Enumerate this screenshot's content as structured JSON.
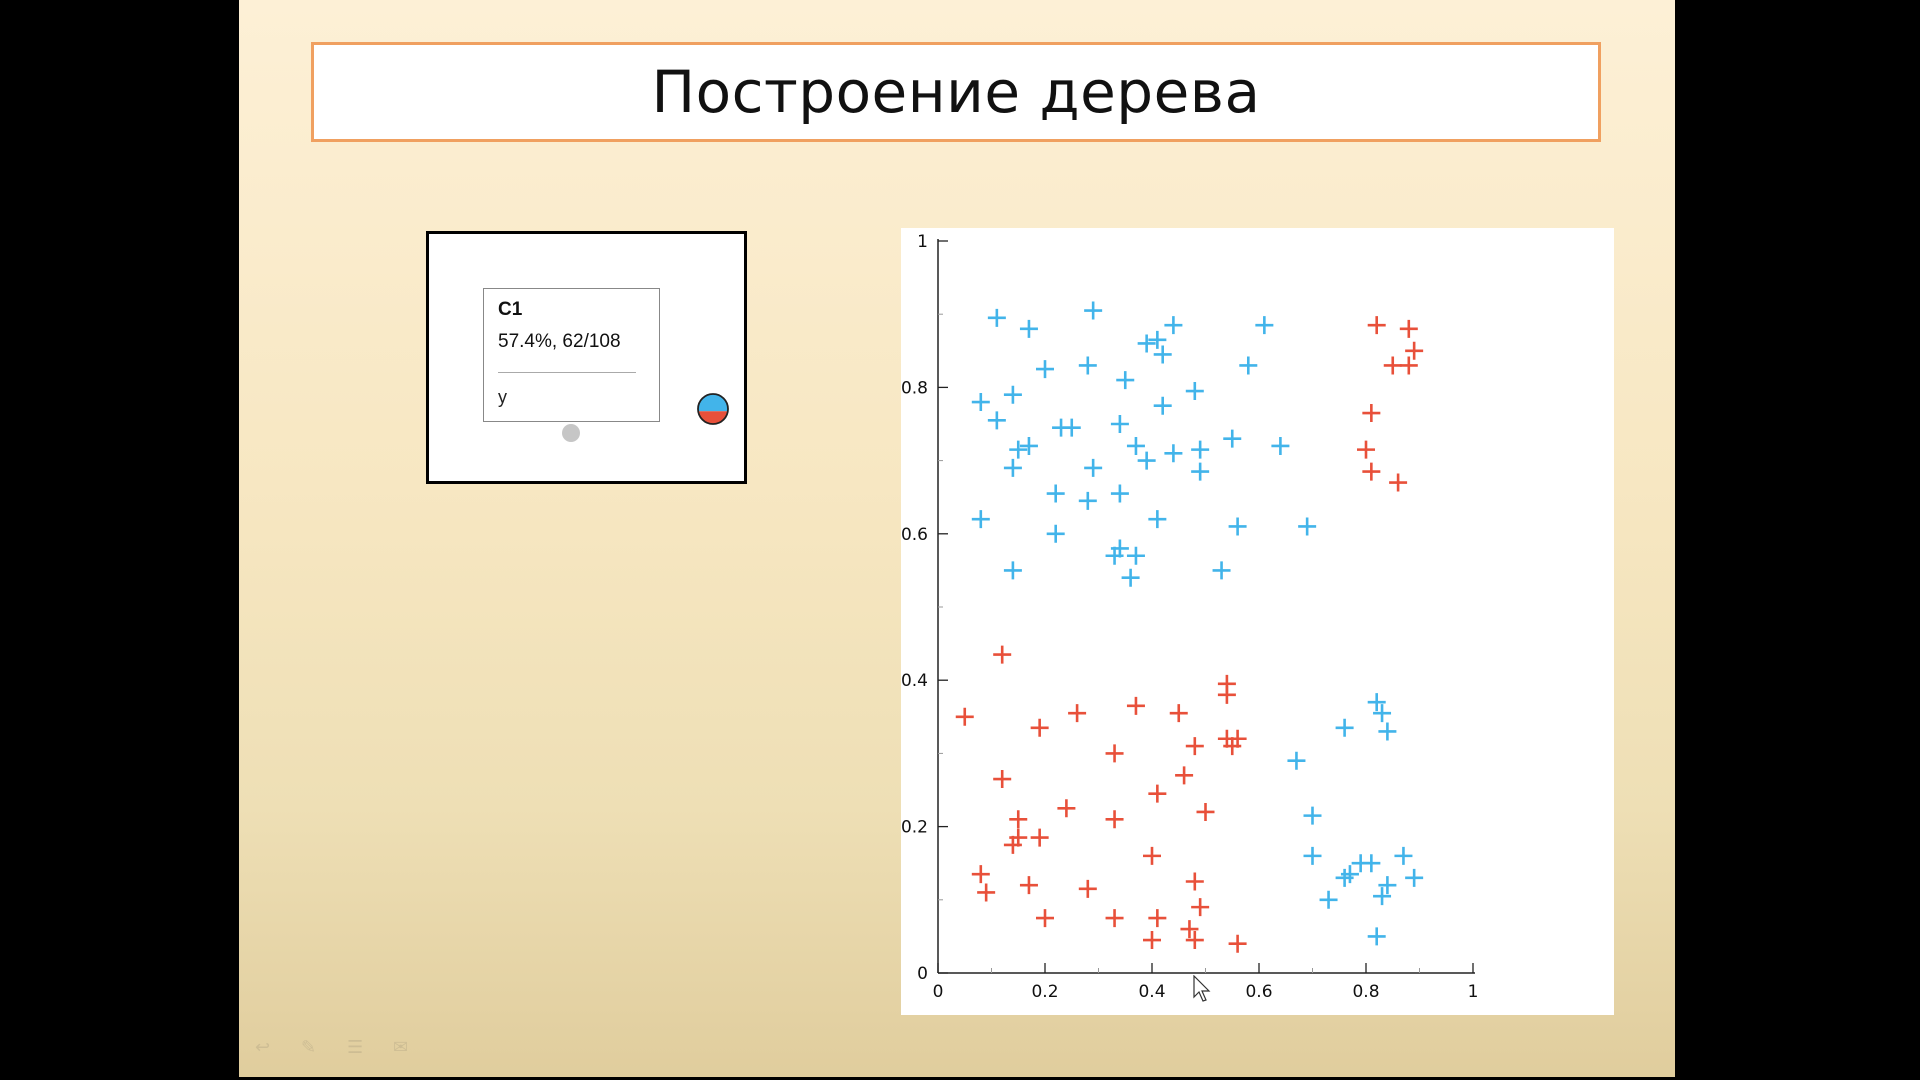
{
  "slide": {
    "title": "Построение дерева"
  },
  "tree_node": {
    "title": "C1",
    "stats": "57.4%, 62/108",
    "split_variable": "y",
    "pie_fraction_blue": 0.574,
    "colors": {
      "blue": "#42b4ea",
      "red": "#e8503a"
    }
  },
  "toolbar": {
    "icons": [
      "back-arrow-icon",
      "pen-icon",
      "menu-icon",
      "chat-icon"
    ]
  },
  "chart_data": {
    "type": "scatter",
    "title": "",
    "xlabel": "",
    "ylabel": "",
    "xlim": [
      0,
      1
    ],
    "ylim": [
      0,
      1
    ],
    "x_ticks": [
      "0",
      "0.2",
      "0.4",
      "0.6",
      "0.8",
      "1"
    ],
    "y_ticks": [
      "0",
      "0.2",
      "0.4",
      "0.6",
      "0.8",
      "1"
    ],
    "grid": false,
    "legend": "none",
    "marker": "plus",
    "series": [
      {
        "color": "#42b4ea",
        "points": [
          [
            0.11,
            0.895
          ],
          [
            0.17,
            0.88
          ],
          [
            0.29,
            0.905
          ],
          [
            0.39,
            0.86
          ],
          [
            0.41,
            0.865
          ],
          [
            0.44,
            0.885
          ],
          [
            0.42,
            0.845
          ],
          [
            0.61,
            0.885
          ],
          [
            0.2,
            0.825
          ],
          [
            0.28,
            0.83
          ],
          [
            0.35,
            0.81
          ],
          [
            0.48,
            0.795
          ],
          [
            0.58,
            0.83
          ],
          [
            0.08,
            0.78
          ],
          [
            0.14,
            0.79
          ],
          [
            0.42,
            0.775
          ],
          [
            0.11,
            0.755
          ],
          [
            0.23,
            0.745
          ],
          [
            0.25,
            0.745
          ],
          [
            0.34,
            0.75
          ],
          [
            0.37,
            0.72
          ],
          [
            0.39,
            0.7
          ],
          [
            0.44,
            0.71
          ],
          [
            0.49,
            0.715
          ],
          [
            0.55,
            0.73
          ],
          [
            0.64,
            0.72
          ],
          [
            0.15,
            0.715
          ],
          [
            0.17,
            0.72
          ],
          [
            0.14,
            0.69
          ],
          [
            0.29,
            0.69
          ],
          [
            0.49,
            0.685
          ],
          [
            0.22,
            0.655
          ],
          [
            0.28,
            0.645
          ],
          [
            0.34,
            0.655
          ],
          [
            0.08,
            0.62
          ],
          [
            0.22,
            0.6
          ],
          [
            0.41,
            0.62
          ],
          [
            0.56,
            0.61
          ],
          [
            0.69,
            0.61
          ],
          [
            0.34,
            0.58
          ],
          [
            0.33,
            0.57
          ],
          [
            0.37,
            0.57
          ],
          [
            0.36,
            0.54
          ],
          [
            0.53,
            0.55
          ],
          [
            0.14,
            0.55
          ],
          [
            0.82,
            0.37
          ],
          [
            0.83,
            0.355
          ],
          [
            0.84,
            0.33
          ],
          [
            0.76,
            0.335
          ],
          [
            0.67,
            0.29
          ],
          [
            0.7,
            0.215
          ],
          [
            0.7,
            0.16
          ],
          [
            0.76,
            0.13
          ],
          [
            0.77,
            0.135
          ],
          [
            0.79,
            0.15
          ],
          [
            0.81,
            0.15
          ],
          [
            0.87,
            0.16
          ],
          [
            0.84,
            0.12
          ],
          [
            0.83,
            0.105
          ],
          [
            0.89,
            0.13
          ],
          [
            0.73,
            0.1
          ],
          [
            0.82,
            0.05
          ]
        ]
      },
      {
        "color": "#e8503a",
        "points": [
          [
            0.82,
            0.885
          ],
          [
            0.88,
            0.88
          ],
          [
            0.89,
            0.85
          ],
          [
            0.85,
            0.83
          ],
          [
            0.88,
            0.83
          ],
          [
            0.81,
            0.765
          ],
          [
            0.8,
            0.715
          ],
          [
            0.81,
            0.685
          ],
          [
            0.86,
            0.67
          ],
          [
            0.12,
            0.435
          ],
          [
            0.05,
            0.35
          ],
          [
            0.26,
            0.355
          ],
          [
            0.37,
            0.365
          ],
          [
            0.45,
            0.355
          ],
          [
            0.54,
            0.395
          ],
          [
            0.54,
            0.38
          ],
          [
            0.19,
            0.335
          ],
          [
            0.33,
            0.3
          ],
          [
            0.48,
            0.31
          ],
          [
            0.54,
            0.32
          ],
          [
            0.55,
            0.31
          ],
          [
            0.56,
            0.32
          ],
          [
            0.12,
            0.265
          ],
          [
            0.46,
            0.27
          ],
          [
            0.41,
            0.245
          ],
          [
            0.15,
            0.21
          ],
          [
            0.24,
            0.225
          ],
          [
            0.33,
            0.21
          ],
          [
            0.5,
            0.22
          ],
          [
            0.14,
            0.175
          ],
          [
            0.15,
            0.185
          ],
          [
            0.19,
            0.185
          ],
          [
            0.4,
            0.16
          ],
          [
            0.08,
            0.135
          ],
          [
            0.17,
            0.12
          ],
          [
            0.09,
            0.11
          ],
          [
            0.28,
            0.115
          ],
          [
            0.48,
            0.125
          ],
          [
            0.49,
            0.09
          ],
          [
            0.2,
            0.075
          ],
          [
            0.33,
            0.075
          ],
          [
            0.41,
            0.075
          ],
          [
            0.47,
            0.06
          ],
          [
            0.48,
            0.045
          ],
          [
            0.4,
            0.045
          ],
          [
            0.56,
            0.04
          ]
        ]
      }
    ]
  }
}
